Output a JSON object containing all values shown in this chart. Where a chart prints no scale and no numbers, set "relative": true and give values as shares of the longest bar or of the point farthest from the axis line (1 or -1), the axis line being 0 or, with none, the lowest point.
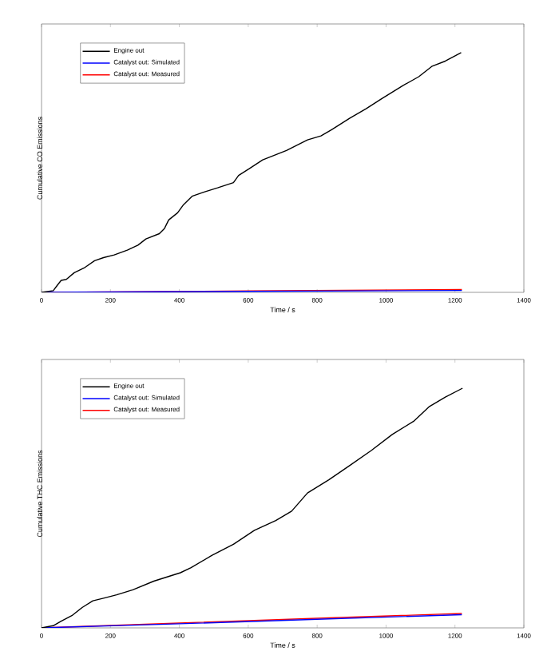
{
  "chart_data": [
    {
      "type": "line",
      "xlabel": "Time / s",
      "ylabel": "Cumulative CO Emissions",
      "relative": true,
      "legend": "top left",
      "marker": "none",
      "line_style": "solid",
      "grid": false,
      "xlim": [
        0,
        1400
      ],
      "xticks": [
        0,
        200,
        400,
        600,
        800,
        1000,
        1200,
        1400
      ],
      "series": [
        {
          "name": "Engine out",
          "color": "#000000",
          "x": [
            0,
            34,
            46,
            57,
            72,
            95,
            126,
            154,
            180,
            211,
            249,
            280,
            303,
            342,
            357,
            369,
            395,
            411,
            437,
            472,
            511,
            557,
            572,
            603,
            642,
            711,
            772,
            811,
            842,
            895,
            942,
            988,
            1049,
            1095,
            1134,
            1172,
            1218
          ],
          "values": [
            0,
            0.007,
            0.03,
            0.05,
            0.054,
            0.082,
            0.104,
            0.132,
            0.145,
            0.156,
            0.176,
            0.197,
            0.223,
            0.245,
            0.267,
            0.302,
            0.332,
            0.364,
            0.401,
            0.419,
            0.436,
            0.458,
            0.488,
            0.516,
            0.553,
            0.592,
            0.636,
            0.653,
            0.679,
            0.727,
            0.766,
            0.809,
            0.863,
            0.9,
            0.944,
            0.965,
            1.0
          ]
        },
        {
          "name": "Catalyst out: Simulated",
          "color": "#0000ff",
          "x": [
            0,
            600,
            1220
          ],
          "values": [
            0,
            0.004,
            0.008
          ]
        },
        {
          "name": "Catalyst out: Measured",
          "color": "#ff0000",
          "x": [
            0,
            600,
            1220
          ],
          "values": [
            0,
            0.006,
            0.012
          ]
        }
      ]
    },
    {
      "type": "line",
      "xlabel": "Time / s",
      "ylabel": "Cumulative THC Emissions",
      "relative": true,
      "legend": "top left",
      "marker": "none",
      "line_style": "solid",
      "grid": false,
      "xlim": [
        0,
        1400
      ],
      "xticks": [
        0,
        200,
        400,
        600,
        800,
        1000,
        1200,
        1400
      ],
      "series": [
        {
          "name": "Engine out",
          "color": "#000000",
          "x": [
            0,
            34,
            57,
            88,
            118,
            149,
            180,
            218,
            265,
            326,
            403,
            434,
            495,
            557,
            618,
            680,
            726,
            772,
            834,
            895,
            957,
            1018,
            1080,
            1126,
            1172,
            1222
          ],
          "values": [
            0,
            0.009,
            0.028,
            0.051,
            0.085,
            0.113,
            0.124,
            0.138,
            0.159,
            0.195,
            0.23,
            0.251,
            0.303,
            0.349,
            0.407,
            0.448,
            0.487,
            0.563,
            0.618,
            0.678,
            0.74,
            0.807,
            0.862,
            0.924,
            0.963,
            1.0
          ]
        },
        {
          "name": "Catalyst out: Simulated",
          "color": "#0000ff",
          "x": [
            0,
            400,
            800,
            1220
          ],
          "values": [
            0,
            0.017,
            0.036,
            0.055
          ]
        },
        {
          "name": "Catalyst out: Measured",
          "color": "#ff0000",
          "x": [
            0,
            400,
            800,
            1220
          ],
          "values": [
            0,
            0.02,
            0.04,
            0.06
          ]
        }
      ]
    }
  ]
}
